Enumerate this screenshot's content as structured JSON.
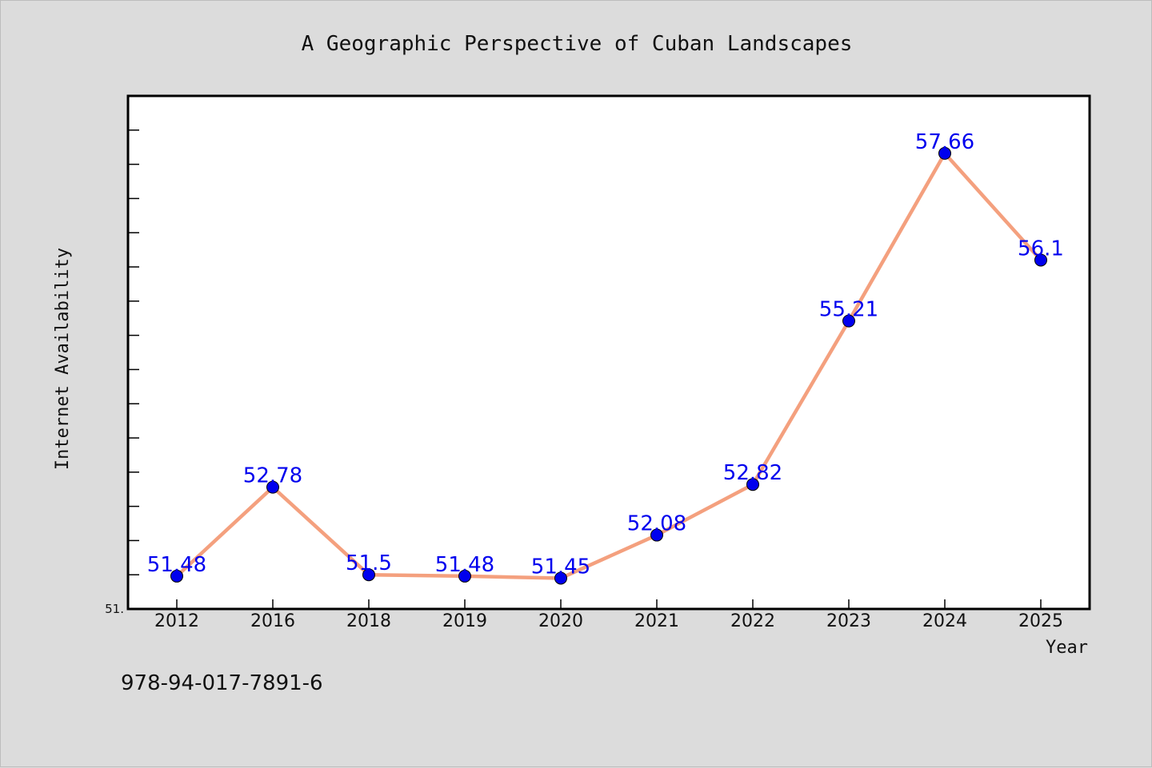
{
  "chart_data": {
    "type": "line",
    "title": "A Geographic Perspective of Cuban Landscapes",
    "xlabel": "Year",
    "ylabel": "Internet Availability",
    "categories": [
      "2012",
      "2016",
      "2018",
      "2019",
      "2020",
      "2021",
      "2022",
      "2023",
      "2024",
      "2025"
    ],
    "values": [
      51.48,
      52.78,
      51.5,
      51.48,
      51.45,
      52.08,
      52.82,
      55.21,
      57.66,
      56.1
    ],
    "data_labels": [
      "51.48",
      "52.78",
      "51.5",
      "51.48",
      "51.45",
      "52.08",
      "52.82",
      "55.21",
      "57.66",
      "56.1"
    ],
    "y_axis_min_label": "51.",
    "ylim": [
      51.0,
      58.5
    ],
    "grid": false,
    "legend": "none",
    "line_color": "#f4a07e",
    "marker_color": "#0000ee"
  },
  "footer": {
    "isbn": "978-94-017-7891-6"
  },
  "colors": {
    "background": "#dcdcdc",
    "plot_area": "#ffffff",
    "axis": "#000000"
  }
}
